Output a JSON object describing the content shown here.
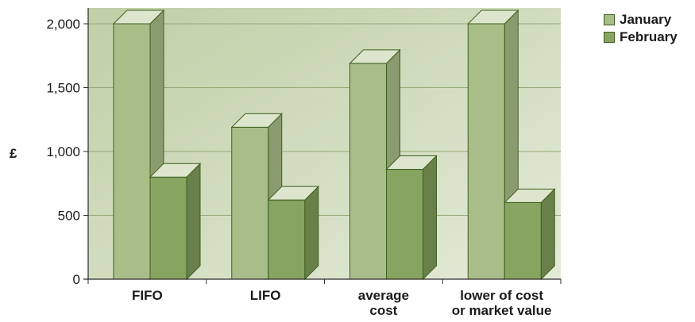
{
  "chart_data": {
    "type": "bar",
    "categories": [
      [
        "FIFO"
      ],
      [
        "LIFO"
      ],
      [
        "average",
        "cost"
      ],
      [
        "lower of cost",
        "or market value"
      ]
    ],
    "series": [
      {
        "name": "January",
        "values": [
          2000,
          1190,
          1690,
          2000
        ],
        "color": "#a9bd88"
      },
      {
        "name": "February",
        "values": [
          800,
          620,
          860,
          600
        ],
        "color": "#87a460"
      }
    ],
    "ylabel": "£",
    "yticks": [
      "0",
      "500",
      "1,000",
      "1,500",
      "2,000"
    ],
    "ylim": [
      0,
      2000
    ],
    "grid": true,
    "legend_position": "top-right",
    "plot_background": "#c9d6b3"
  }
}
